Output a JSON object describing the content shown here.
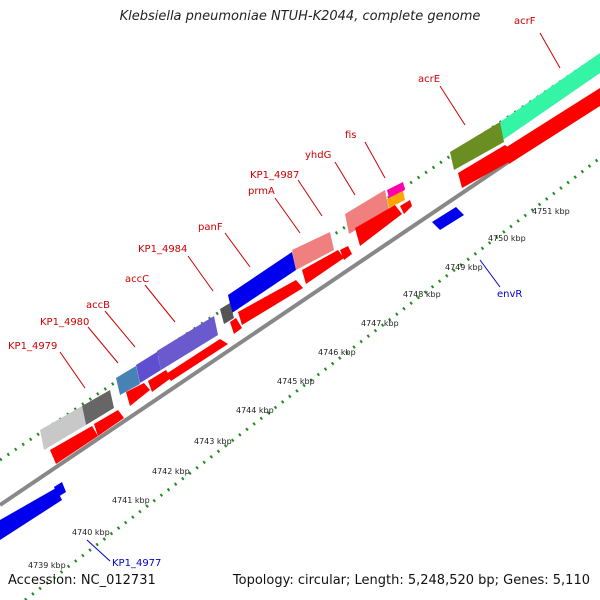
{
  "title": "Klebsiella pneumoniae NTUH-K2044, complete genome",
  "footer": {
    "accession": "Accession: NC_012731",
    "stats": "Topology: circular; Length: 5,248,520 bp; Genes: 5,110"
  },
  "colors": {
    "label_forward": "#cc0000",
    "label_reverse": "#0000cc",
    "cds_forward": "#ff0000",
    "cds_reverse": "#0000ee",
    "backbone": "#888888",
    "tick": "#228b22"
  },
  "gene_labels": [
    {
      "text": "acrF",
      "strand": "forward"
    },
    {
      "text": "acrE",
      "strand": "forward"
    },
    {
      "text": "fis",
      "strand": "forward"
    },
    {
      "text": "yhdG",
      "strand": "forward"
    },
    {
      "text": "KP1_4987",
      "strand": "forward"
    },
    {
      "text": "prmA",
      "strand": "forward"
    },
    {
      "text": "panF",
      "strand": "forward"
    },
    {
      "text": "KP1_4984",
      "strand": "forward"
    },
    {
      "text": "accC",
      "strand": "forward"
    },
    {
      "text": "accB",
      "strand": "forward"
    },
    {
      "text": "KP1_4980",
      "strand": "forward"
    },
    {
      "text": "KP1_4979",
      "strand": "forward"
    },
    {
      "text": "envR",
      "strand": "reverse"
    },
    {
      "text": "KP1_4977",
      "strand": "reverse"
    }
  ],
  "kbp_labels": [
    "4739 kbp",
    "4740 kbp",
    "4741 kbp",
    "4742 kbp",
    "4743 kbp",
    "4744 kbp",
    "4745 kbp",
    "4746 kbp",
    "4747 kbp",
    "4748 kbp",
    "4749 kbp",
    "4750 kbp",
    "4751 kbp"
  ]
}
